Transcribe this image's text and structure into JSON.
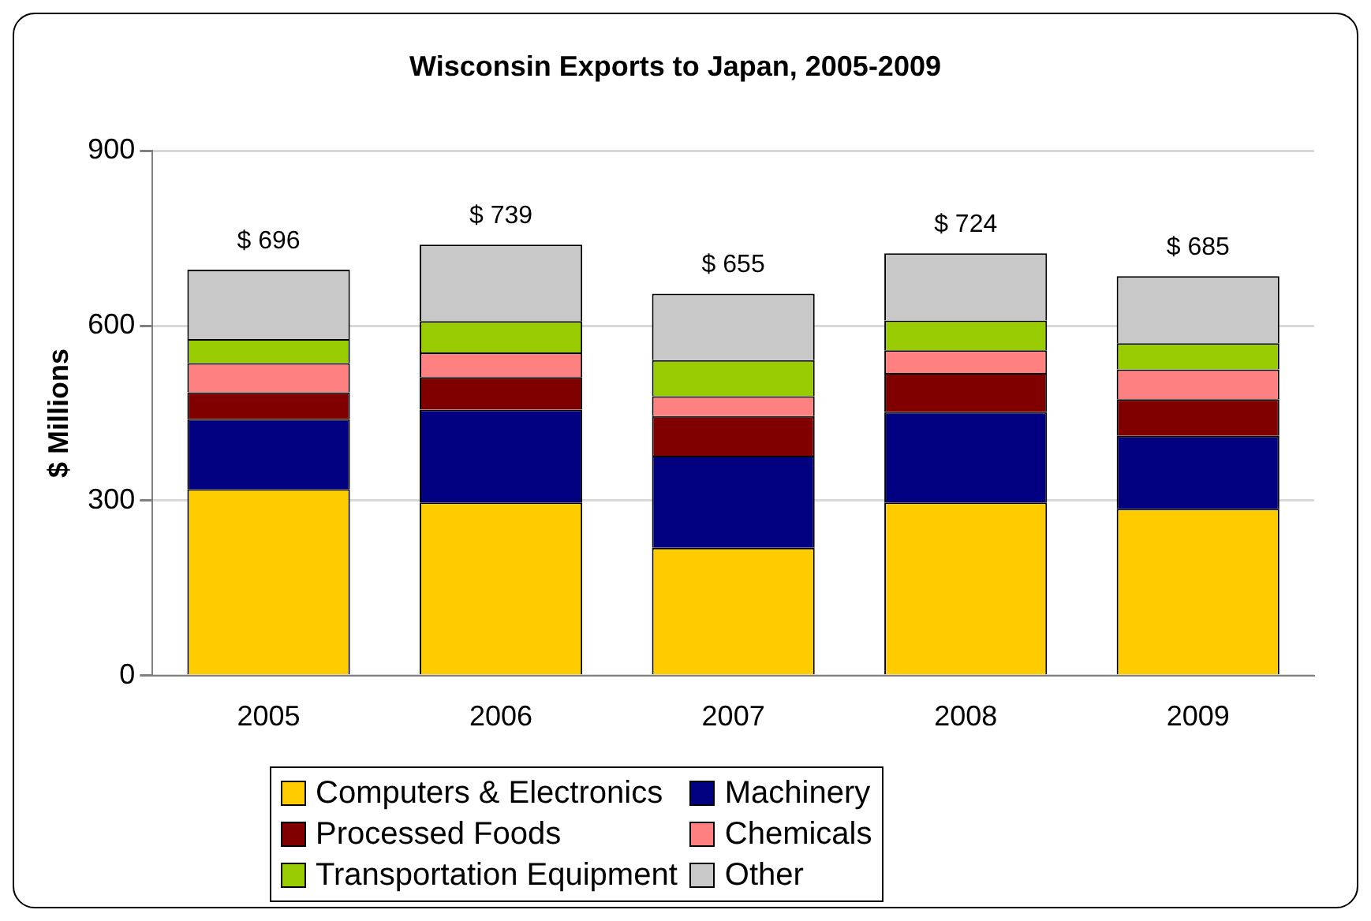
{
  "chart_data": {
    "type": "bar",
    "title": "Wisconsin Exports to Japan, 2005-2009",
    "ylabel": "$ Millions",
    "categories": [
      "2005",
      "2006",
      "2007",
      "2008",
      "2009"
    ],
    "stacked": true,
    "series": [
      {
        "name": "Computers & Electronics",
        "color": "#ffcc00",
        "values": [
          320,
          297,
          219,
          297,
          286
        ]
      },
      {
        "name": "Machinery",
        "color": "#000080",
        "values": [
          120,
          159,
          158,
          155,
          125
        ]
      },
      {
        "name": "Processed Foods",
        "color": "#800000",
        "values": [
          46,
          56,
          68,
          67,
          63
        ]
      },
      {
        "name": "Chemicals",
        "color": "#ff8080",
        "values": [
          50,
          42,
          34,
          39,
          51
        ]
      },
      {
        "name": "Transportation Equipment",
        "color": "#99cc00",
        "values": [
          41,
          54,
          62,
          51,
          45
        ]
      },
      {
        "name": "Other",
        "color": "#c8c8c8",
        "values": [
          119,
          131,
          114,
          115,
          115
        ]
      }
    ],
    "totals": [
      "$ 696",
      "$ 739",
      "$ 655",
      "$ 724",
      "$ 685"
    ],
    "ylim": [
      0,
      900
    ],
    "yticks": [
      0,
      300,
      600,
      900
    ],
    "grid": "y",
    "legend": "bottom"
  }
}
